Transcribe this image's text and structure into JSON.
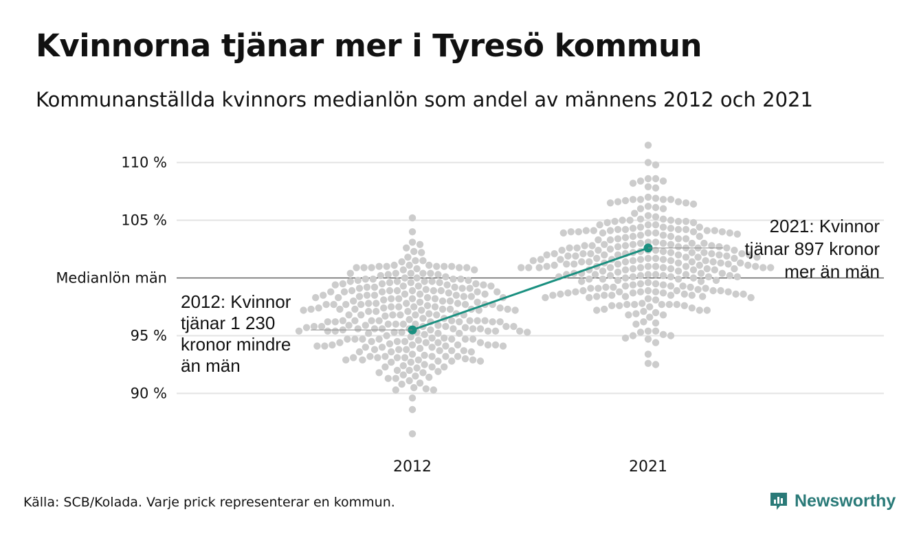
{
  "title": "Kvinnorna tjänar mer i Tyresö kommun",
  "subtitle": "Kommunanställda kvinnors medianlön som andel av männens 2012 och 2021",
  "source": "Källa: SCB/Kolada. Varje prick representerar en kommun.",
  "logo": {
    "name": "newsworthy-logo-icon",
    "text": "Newsworthy",
    "color": "#2a7a78"
  },
  "colors": {
    "dot": "#cccccc",
    "highlight": "#1a9080",
    "grid": "#e3e3e3",
    "refline": "#444444"
  },
  "chart_data": {
    "type": "scatter",
    "subtype": "beeswarm",
    "categories": [
      "2012",
      "2021"
    ],
    "y_tick_labels": [
      "110 %",
      "105 %",
      "95 %",
      "90 %"
    ],
    "y_ticks": [
      110,
      105,
      95,
      90
    ],
    "reference_line": {
      "label": "Medianlön män",
      "value": 100
    },
    "ylim": [
      86,
      111.5
    ],
    "grid": "horizontal",
    "series": [
      {
        "category": "2012",
        "distribution": {
          "count": 290,
          "median": 96.5,
          "min": 86.5,
          "max": 105.2
        }
      },
      {
        "category": "2021",
        "distribution": {
          "count": 290,
          "median": 101.5,
          "min": 92.5,
          "max": 111.5
        }
      }
    ],
    "highlight": {
      "points": [
        {
          "x": "2012",
          "y": 95.5
        },
        {
          "x": "2021",
          "y": 102.6
        }
      ]
    },
    "annotations": [
      {
        "x": "2012",
        "y": 95.5,
        "lines": [
          "2012: Kvinnor",
          "tjänar 1 230",
          "kronor mindre",
          "än män"
        ]
      },
      {
        "x": "2021",
        "y": 102.6,
        "lines": [
          "2021: Kvinnor",
          "tjänar 897 kronor",
          "mer än män"
        ]
      }
    ]
  }
}
